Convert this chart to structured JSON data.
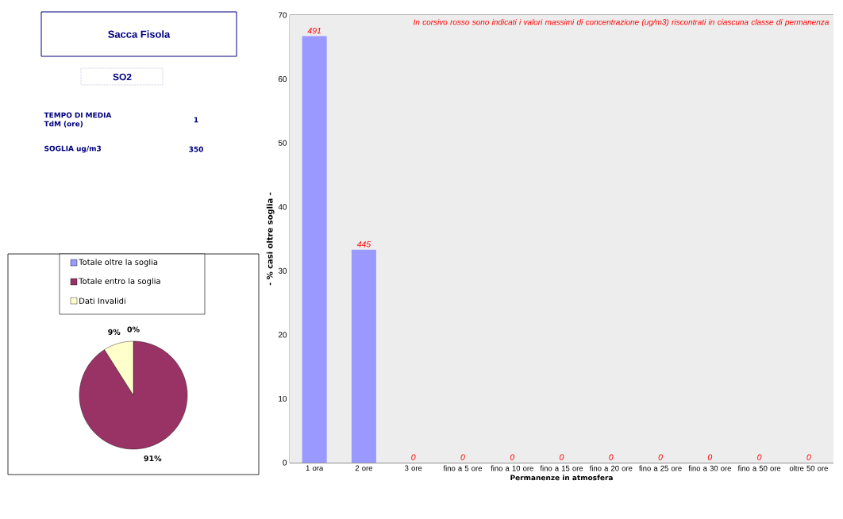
{
  "chart_data": [
    {
      "type": "other",
      "title": "Sacca Fisola",
      "subtitle": "SO2",
      "annotations": [
        "TEMPO DI MEDIA TdM (ore)",
        "1",
        "SOGLIA ug/m3",
        "350"
      ]
    },
    {
      "type": "bar",
      "categories": [
        "1 ora",
        "2 ore",
        "3 ore",
        "fino a 5 ore",
        "fino a 10 ore",
        "fino a 15 ore",
        "fino a 20 ore",
        "fino a 25 ore",
        "fino a 30 ore",
        "fino a 50 ore",
        "oltre 50 ore"
      ],
      "values": [
        66.7,
        33.3,
        0,
        0,
        0,
        0,
        0,
        0,
        0,
        0,
        0
      ],
      "color": "#9999ff",
      "ylim": [
        0,
        70
      ],
      "yticks": [
        0,
        10,
        20,
        30,
        40,
        50,
        60,
        70
      ],
      "grid": "y",
      "xlabel": "Permanenze in atmosfera",
      "ylabel": "- % casi oltre soglia -",
      "annotations": [
        {
          "text": "491",
          "x": "1 ora",
          "y": 66.7
        },
        {
          "text": "445",
          "x": "2 ore",
          "y": 33.3
        },
        {
          "text": "0",
          "x": "3 ore",
          "y": 0
        },
        {
          "text": "0",
          "x": "fino a 5 ore",
          "y": 0
        },
        {
          "text": "0",
          "x": "fino a 10 ore",
          "y": 0
        },
        {
          "text": "0",
          "x": "fino a 15 ore",
          "y": 0
        },
        {
          "text": "0",
          "x": "fino a 20 ore",
          "y": 0
        },
        {
          "text": "0",
          "x": "fino a 25 ore",
          "y": 0
        },
        {
          "text": "0",
          "x": "fino a 30 ore",
          "y": 0
        },
        {
          "text": "0",
          "x": "fino a 50 ore",
          "y": 0
        },
        {
          "text": "0",
          "x": "oltre 50 ore",
          "y": 0
        },
        "In corsivo rosso sono indicati i valori massimi di concentrazione (ug/m3) riscontrati in ciascuna classe di permanenza"
      ]
    },
    {
      "type": "pie",
      "categories": [
        "Totale oltre la soglia",
        "Totale entro la soglia",
        "Dati Invalidi"
      ],
      "values": [
        0,
        91,
        9
      ],
      "colors": [
        "#9999ff",
        "#993366",
        "#ffffcc"
      ],
      "value_labels": [
        "0%",
        "91%",
        "9%"
      ],
      "legend": "top"
    }
  ]
}
